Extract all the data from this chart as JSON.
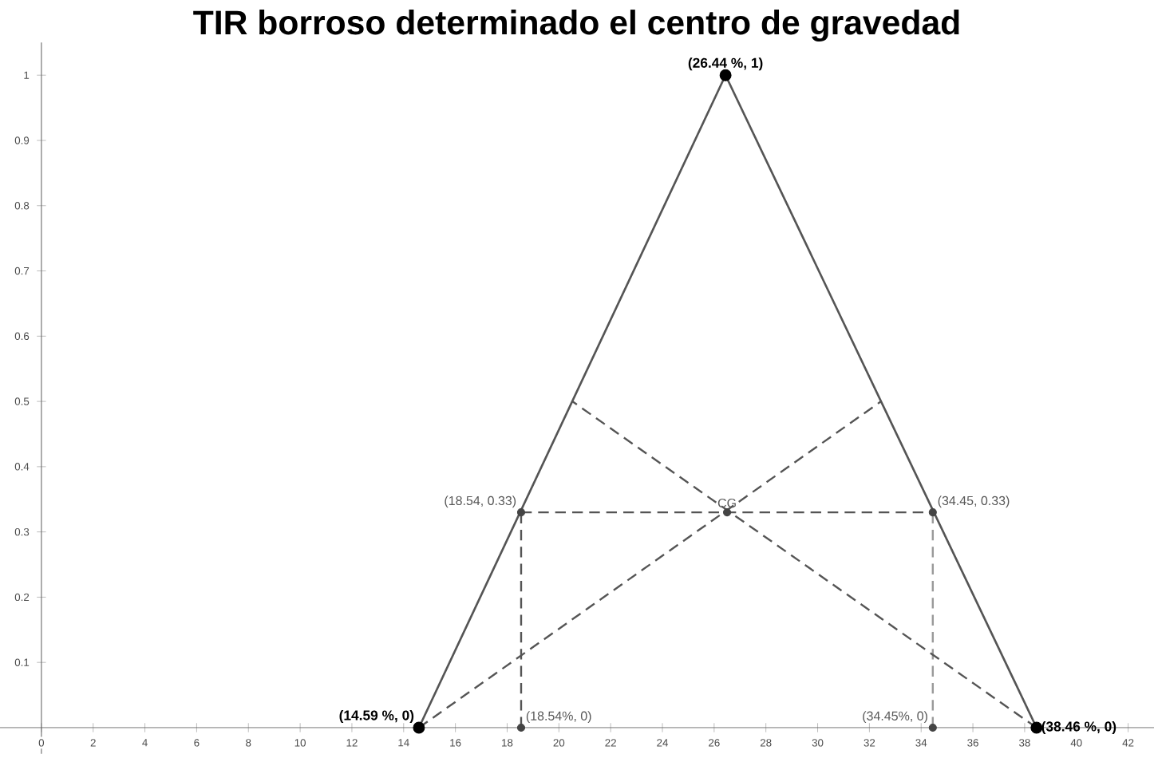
{
  "chart_data": {
    "type": "line",
    "title": "TIR borroso determinado el centro de gravedad",
    "xlim": [
      -1.6,
      43
    ],
    "ylim": [
      -0.04,
      1.05
    ],
    "xticks": [
      0,
      2,
      4,
      6,
      8,
      10,
      12,
      14,
      16,
      18,
      20,
      22,
      24,
      26,
      28,
      30,
      32,
      34,
      36,
      38,
      40,
      42
    ],
    "yticks": [
      0.1,
      0.2,
      0.3,
      0.4,
      0.5,
      0.6,
      0.7,
      0.8,
      0.9,
      1
    ],
    "grid": false,
    "series": [
      {
        "color": "#555555",
        "x": [
          14.59,
          26.44,
          38.46
        ],
        "values": [
          0,
          1,
          0
        ],
        "line_style": "solid",
        "marker": "none"
      },
      {
        "color": "#555555",
        "x": [
          18.54,
          34.45
        ],
        "values": [
          0.33,
          0.33
        ],
        "line_style": "dashed",
        "marker": "none"
      },
      {
        "color": "#555555",
        "x": [
          18.54,
          18.54
        ],
        "values": [
          0,
          0.33
        ],
        "line_style": "dashed",
        "marker": "none"
      },
      {
        "color": "#999999",
        "x": [
          34.45,
          34.45
        ],
        "values": [
          0,
          0.33
        ],
        "line_style": "dashed",
        "marker": "none"
      },
      {
        "color": "#555555",
        "x": [
          14.59,
          32.45
        ],
        "values": [
          0,
          0.5
        ],
        "line_style": "dashed",
        "marker": "none"
      },
      {
        "color": "#555555",
        "x": [
          38.46,
          20.52
        ],
        "values": [
          0,
          0.5
        ],
        "line_style": "dashed",
        "marker": "none"
      },
      {
        "type": "scatter",
        "color": "#000000",
        "x": [
          14.59,
          26.44,
          38.46
        ],
        "values": [
          0,
          1,
          0
        ],
        "marker": "circle",
        "value_labels": [
          "(14.59 %, 0)",
          "(26.44 %, 1)",
          "(38.46 %, 0)"
        ]
      },
      {
        "type": "scatter",
        "color": "#444444",
        "x": [
          18.54,
          34.45,
          26.5,
          18.54,
          34.45
        ],
        "values": [
          0.33,
          0.33,
          0.33,
          0,
          0
        ],
        "marker": "circle",
        "value_labels": [
          "(18.54, 0.33)",
          "(34.45, 0.33)",
          "CG",
          "(18.54%, 0)",
          "(34.45%, 0)"
        ]
      }
    ]
  }
}
